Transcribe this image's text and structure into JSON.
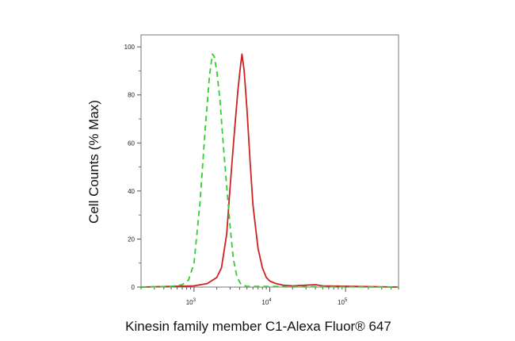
{
  "chart_data": {
    "type": "line",
    "xlabel": "Kinesin family member C1-Alexa Fluor® 647",
    "ylabel": "Cell Counts (% Max)",
    "x_scale": "log",
    "xlim": [
      200,
      500000
    ],
    "ylim": [
      0,
      105
    ],
    "y_ticks": [
      "0",
      "20",
      "40",
      "60",
      "80",
      "100"
    ],
    "x_ticks": [
      {
        "base": "10",
        "exp": "3",
        "value": 1000
      },
      {
        "base": "10",
        "exp": "4",
        "value": 10000
      },
      {
        "base": "10",
        "exp": "5",
        "value": 100000
      }
    ],
    "grid": false,
    "series": [
      {
        "color": "#cc2222",
        "style": "solid",
        "x": [
          200,
          1000,
          1500,
          2000,
          2300,
          2700,
          3000,
          3400,
          3800,
          4100,
          4300,
          4600,
          5000,
          5500,
          6000,
          7000,
          8000,
          9000,
          10000,
          12000,
          15000,
          20000,
          30000,
          40000,
          50000,
          500000
        ],
        "y": [
          0,
          0.5,
          1.5,
          4,
          8,
          22,
          42,
          64,
          82,
          92,
          97,
          90,
          74,
          52,
          34,
          16,
          8,
          4,
          2.5,
          1.5,
          0.8,
          0.5,
          0.8,
          1,
          0.5,
          0
        ]
      },
      {
        "color": "#33cc33",
        "style": "dashed",
        "x": [
          200,
          500,
          700,
          850,
          1000,
          1200,
          1400,
          1600,
          1750,
          1850,
          2000,
          2200,
          2400,
          2700,
          3000,
          3300,
          3700,
          4200,
          5000,
          500000
        ],
        "y": [
          0,
          0.3,
          1,
          3,
          10,
          35,
          65,
          88,
          97,
          96,
          90,
          78,
          62,
          42,
          25,
          12,
          4,
          1,
          0.3,
          0
        ]
      }
    ]
  }
}
